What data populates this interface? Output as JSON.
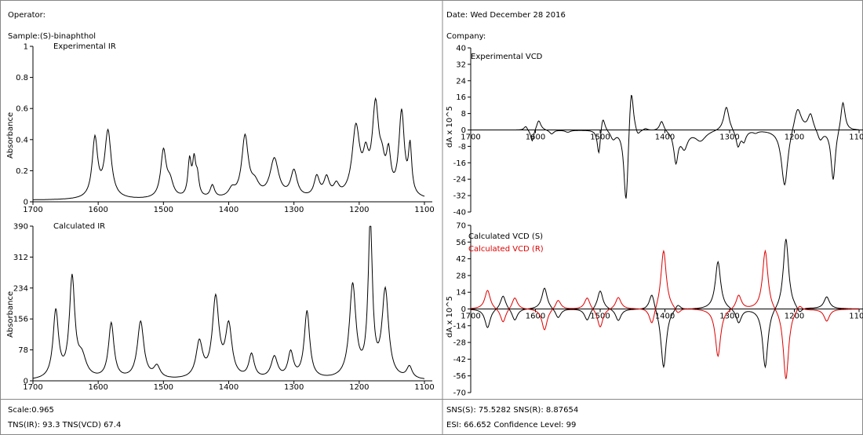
{
  "header": {
    "operator": "Operator:",
    "date": "Date: Wed December 28 2016",
    "sample": "Sample:(S)-binaphthol",
    "company": "Company:"
  },
  "footer": {
    "scale": "Scale:0.965",
    "tns": "TNS(IR):  93.3 TNS(VCD)  67.4",
    "sns": "SNS(S):  75.5282   SNS(R):  8.87654",
    "esi": "ESI: 66.652  Confidence Level: 99"
  },
  "chart_data": [
    {
      "type": "line",
      "title": "Experimental IR",
      "ylabel": "Absorbance",
      "xlim": [
        1700,
        1100
      ],
      "ylim": [
        0,
        1
      ],
      "xticks": [
        "1700",
        "1600",
        "1500",
        "1400",
        "1300",
        "1200",
        "1100"
      ],
      "yticks": [
        "0",
        "0.2",
        "0.4",
        "0.6",
        "0.8",
        "1"
      ],
      "series": [
        {
          "color": "#000000",
          "baseline": 0.01,
          "peaks": [
            [
              1605,
              0.38,
              5
            ],
            [
              1585,
              0.43,
              6
            ],
            [
              1500,
              0.3,
              5
            ],
            [
              1490,
              0.1,
              6
            ],
            [
              1460,
              0.23,
              3
            ],
            [
              1453,
              0.22,
              3
            ],
            [
              1448,
              0.12,
              3
            ],
            [
              1425,
              0.08,
              4
            ],
            [
              1395,
              0.05,
              6
            ],
            [
              1375,
              0.39,
              6
            ],
            [
              1360,
              0.08,
              8
            ],
            [
              1330,
              0.25,
              8
            ],
            [
              1300,
              0.17,
              6
            ],
            [
              1265,
              0.13,
              5
            ],
            [
              1250,
              0.12,
              5
            ],
            [
              1235,
              0.07,
              5
            ],
            [
              1205,
              0.44,
              7
            ],
            [
              1190,
              0.2,
              5
            ],
            [
              1175,
              0.56,
              6
            ],
            [
              1165,
              0.15,
              5
            ],
            [
              1155,
              0.24,
              4
            ],
            [
              1135,
              0.54,
              5
            ],
            [
              1122,
              0.3,
              3
            ]
          ]
        }
      ]
    },
    {
      "type": "line",
      "title": "Experimental VCD",
      "ylabel": "dA x 10^5",
      "xlim": [
        1700,
        1100
      ],
      "ylim": [
        -40,
        40
      ],
      "xticks": [
        "1700",
        "1600",
        "1500",
        "1400",
        "1300",
        "1200",
        "1100"
      ],
      "yticks": [
        "40",
        "32",
        "24",
        "16",
        "8",
        "0",
        "-8",
        "-16",
        "-24",
        "-32",
        "-40"
      ],
      "series": [
        {
          "color": "#000000",
          "baseline": 0,
          "peaks": [
            [
              1615,
              2,
              3
            ],
            [
              1605,
              -6,
              3
            ],
            [
              1595,
              5,
              4
            ],
            [
              1575,
              -2,
              4
            ],
            [
              1550,
              -1,
              5
            ],
            [
              1502,
              -13,
              3
            ],
            [
              1496,
              8,
              4
            ],
            [
              1480,
              -4,
              5
            ],
            [
              1460,
              -38,
              4
            ],
            [
              1452,
              25,
              4
            ],
            [
              1442,
              -3,
              4
            ],
            [
              1430,
              1,
              4
            ],
            [
              1405,
              5,
              4
            ],
            [
              1383,
              -15,
              4
            ],
            [
              1370,
              -8,
              6
            ],
            [
              1345,
              -5,
              10
            ],
            [
              1305,
              12,
              5
            ],
            [
              1287,
              -8,
              4
            ],
            [
              1278,
              -5,
              4
            ],
            [
              1260,
              -1,
              4
            ],
            [
              1215,
              -28,
              6
            ],
            [
              1195,
              12,
              7
            ],
            [
              1175,
              8,
              5
            ],
            [
              1160,
              -5,
              5
            ],
            [
              1140,
              -25,
              4
            ],
            [
              1125,
              15,
              4
            ]
          ]
        }
      ]
    },
    {
      "type": "line",
      "title": "Calculated IR",
      "ylabel": "Absorbance",
      "xlim": [
        1700,
        1100
      ],
      "ylim": [
        0,
        390
      ],
      "xticks": [
        "1700",
        "1600",
        "1500",
        "1400",
        "1300",
        "1200",
        "1100"
      ],
      "yticks": [
        "0",
        "78",
        "156",
        "234",
        "312",
        "390"
      ],
      "series": [
        {
          "color": "#000000",
          "baseline": 0,
          "peaks": [
            [
              1665,
              170,
              5
            ],
            [
              1640,
              250,
              5
            ],
            [
              1625,
              50,
              8
            ],
            [
              1580,
              140,
              5
            ],
            [
              1535,
              145,
              6
            ],
            [
              1510,
              30,
              6
            ],
            [
              1445,
              90,
              6
            ],
            [
              1420,
              200,
              6
            ],
            [
              1400,
              130,
              6
            ],
            [
              1365,
              60,
              5
            ],
            [
              1330,
              55,
              6
            ],
            [
              1305,
              65,
              5
            ],
            [
              1280,
              170,
              5
            ],
            [
              1210,
              235,
              6
            ],
            [
              1183,
              385,
              4
            ],
            [
              1160,
              220,
              6
            ],
            [
              1123,
              30,
              5
            ]
          ]
        }
      ]
    },
    {
      "type": "line",
      "ylabel": "dA x 10^5",
      "xlim": [
        1700,
        1100
      ],
      "ylim": [
        -70,
        70
      ],
      "xticks": [
        "1700",
        "1600",
        "1500",
        "1400",
        "1300",
        "1200",
        "1100"
      ],
      "yticks": [
        "70",
        "56",
        "42",
        "28",
        "14",
        "0",
        "-14",
        "-28",
        "-42",
        "-56",
        "-70"
      ],
      "series": [
        {
          "name": "Calculated VCD (S)",
          "color": "#000000",
          "baseline": 0,
          "peaks": [
            [
              1674,
              -16,
              5
            ],
            [
              1650,
              12,
              5
            ],
            [
              1632,
              -10,
              5
            ],
            [
              1586,
              18,
              5
            ],
            [
              1565,
              -8,
              5
            ],
            [
              1520,
              -10,
              5
            ],
            [
              1500,
              16,
              5
            ],
            [
              1472,
              -10,
              5
            ],
            [
              1420,
              15,
              5
            ],
            [
              1402,
              -50,
              5
            ],
            [
              1380,
              5,
              5
            ],
            [
              1318,
              40,
              5
            ],
            [
              1286,
              -12,
              5
            ],
            [
              1245,
              -50,
              5
            ],
            [
              1213,
              60,
              5
            ],
            [
              1192,
              -5,
              5
            ],
            [
              1150,
              10,
              5
            ]
          ]
        },
        {
          "name": "Calculated VCD (R)",
          "color": "#dd0000",
          "baseline": 0,
          "peaks": [
            [
              1674,
              16,
              5
            ],
            [
              1650,
              -12,
              5
            ],
            [
              1632,
              10,
              5
            ],
            [
              1586,
              -18,
              5
            ],
            [
              1565,
              8,
              5
            ],
            [
              1520,
              10,
              5
            ],
            [
              1500,
              -16,
              5
            ],
            [
              1472,
              10,
              5
            ],
            [
              1420,
              -15,
              5
            ],
            [
              1402,
              50,
              5
            ],
            [
              1380,
              -5,
              5
            ],
            [
              1318,
              -40,
              5
            ],
            [
              1286,
              12,
              5
            ],
            [
              1245,
              50,
              5
            ],
            [
              1213,
              -60,
              5
            ],
            [
              1192,
              5,
              5
            ],
            [
              1150,
              -10,
              5
            ]
          ]
        }
      ]
    }
  ]
}
